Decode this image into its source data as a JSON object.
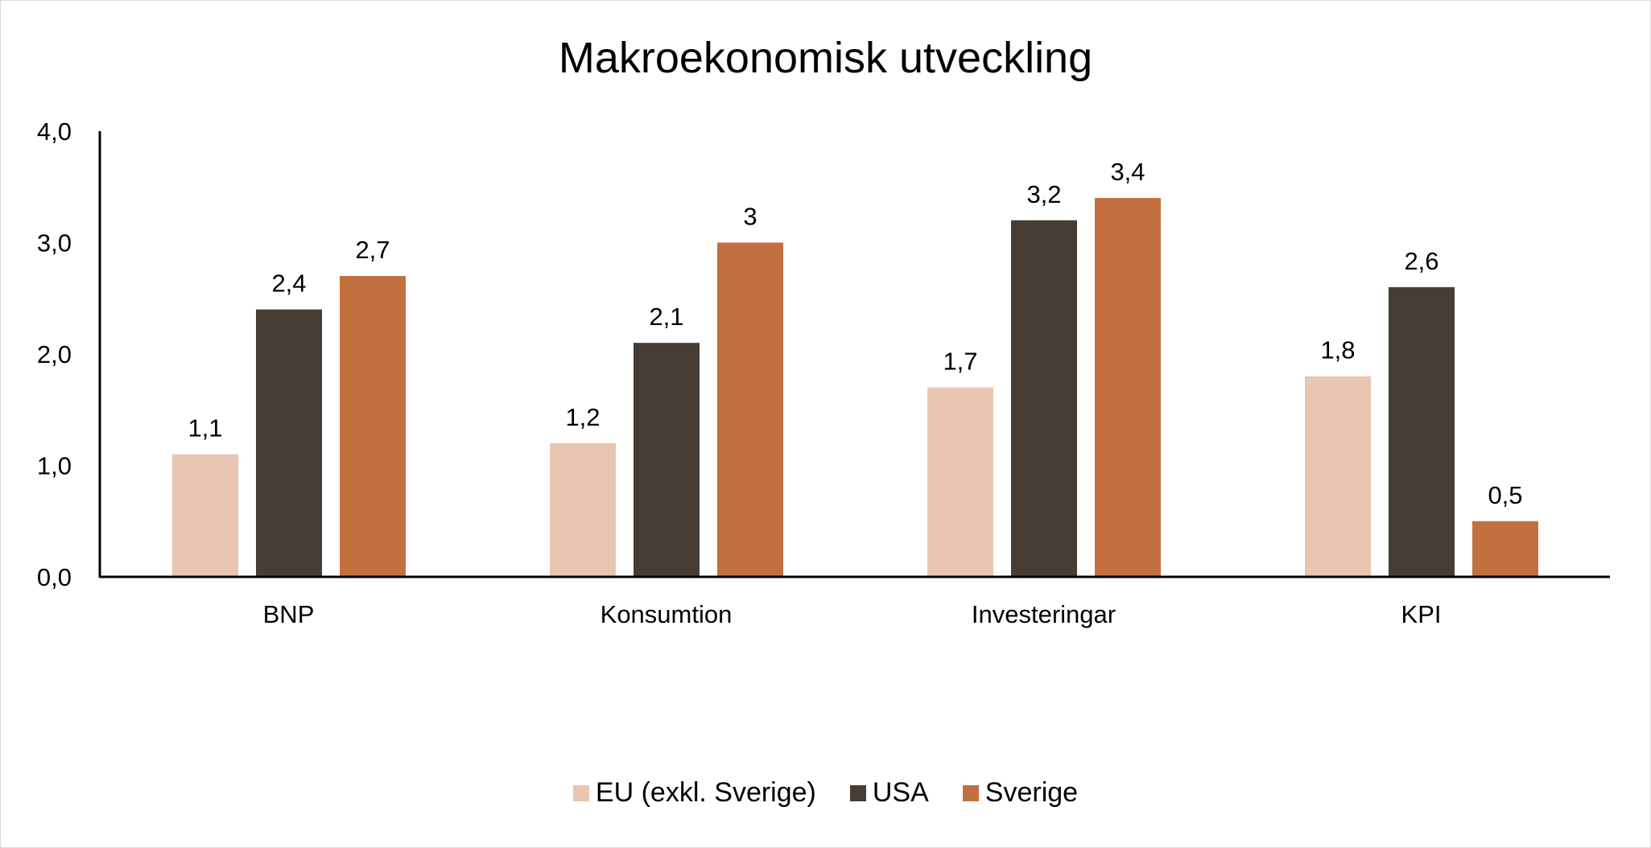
{
  "chart_data": {
    "type": "bar",
    "title": "Makroekonomisk utveckling",
    "categories": [
      "BNP",
      "Konsumtion",
      "Investeringar",
      "KPI"
    ],
    "series": [
      {
        "name": "EU (exkl. Sverige)",
        "values": [
          1.1,
          1.2,
          1.7,
          1.8
        ],
        "labels": [
          "1,1",
          "1,2",
          "1,7",
          "1,8"
        ],
        "color": "#E8C6B2"
      },
      {
        "name": "USA",
        "values": [
          2.4,
          2.1,
          3.2,
          2.6
        ],
        "labels": [
          "2,4",
          "2,1",
          "3,2",
          "2,6"
        ],
        "color": "#463D35"
      },
      {
        "name": "Sverige",
        "values": [
          2.7,
          3.0,
          3.4,
          0.5
        ],
        "labels": [
          "2,7",
          "3",
          "3,4",
          "0,5"
        ],
        "color": "#C2703F"
      }
    ],
    "yticks": [
      "0,0",
      "1,0",
      "2,0",
      "3,0",
      "4,0"
    ],
    "ylim": [
      0,
      4
    ],
    "xlabel": "",
    "ylabel": "",
    "grid": false,
    "legend": "bottom"
  }
}
